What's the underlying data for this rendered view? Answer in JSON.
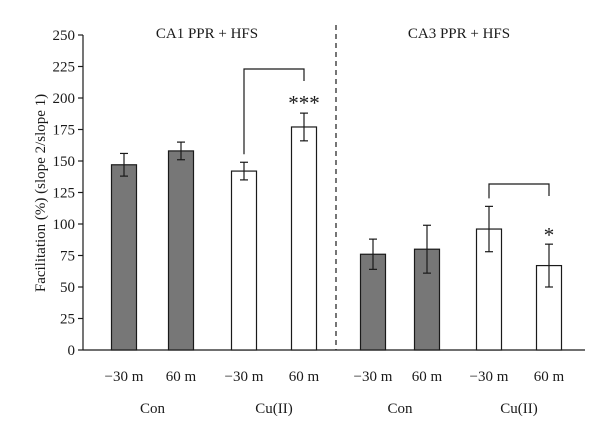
{
  "chart_data": {
    "type": "bar",
    "ylabel": "Facilitation (%) (slope 2/slope 1)",
    "ylim": [
      0,
      250
    ],
    "yticks": [
      0,
      25,
      50,
      75,
      100,
      125,
      150,
      175,
      200,
      225,
      250
    ],
    "panels": [
      {
        "title": "CA1 PPR + HFS",
        "groups": [
          {
            "label": "Con",
            "bars": [
              {
                "category": "−30 m",
                "value": 147,
                "error": 9,
                "fill": "gray"
              },
              {
                "category": "60 m",
                "value": 158,
                "error": 7,
                "fill": "gray"
              }
            ]
          },
          {
            "label": "Cu(II)",
            "bars": [
              {
                "category": "−30 m",
                "value": 142,
                "error": 7,
                "fill": "white"
              },
              {
                "category": "60 m",
                "value": 177,
                "error": 11,
                "fill": "white"
              }
            ]
          }
        ],
        "significance": "***"
      },
      {
        "title": "CA3 PPR + HFS",
        "groups": [
          {
            "label": "Con",
            "bars": [
              {
                "category": "−30 m",
                "value": 76,
                "error": 12,
                "fill": "gray"
              },
              {
                "category": "60 m",
                "value": 80,
                "error": 19,
                "fill": "gray"
              }
            ]
          },
          {
            "label": "Cu(II)",
            "bars": [
              {
                "category": "−30 m",
                "value": 96,
                "error": 18,
                "fill": "white"
              },
              {
                "category": "60 m",
                "value": 67,
                "error": 17,
                "fill": "white"
              }
            ]
          }
        ],
        "significance": "*"
      }
    ]
  },
  "colors": {
    "gray": "#777777",
    "white": "#ffffff",
    "stroke": "#1a1a1a"
  }
}
